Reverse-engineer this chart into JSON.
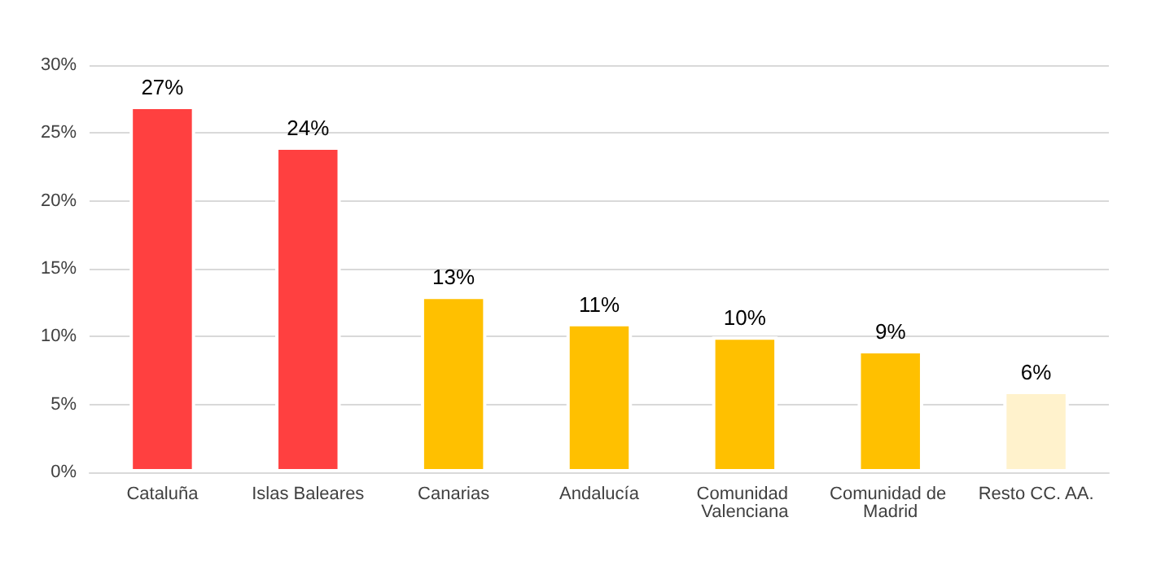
{
  "chart_data": {
    "type": "bar",
    "categories": [
      "Cataluña",
      "Islas Baleares",
      "Canarias",
      "Andalucía",
      "Comunidad Valenciana",
      "Comunidad de Madrid",
      "Resto CC. AA."
    ],
    "values": [
      27,
      24,
      13,
      11,
      10,
      9,
      6
    ],
    "colors": [
      "#ff4040",
      "#ff4040",
      "#ffc000",
      "#ffc000",
      "#ffc000",
      "#ffc000",
      "#fff2cc"
    ],
    "value_labels": [
      "27%",
      "24%",
      "13%",
      "11%",
      "10%",
      "9%",
      "6%"
    ],
    "ylim": [
      0,
      30
    ],
    "yticks": [
      {
        "value": 0,
        "label": "0%"
      },
      {
        "value": 5,
        "label": "5%"
      },
      {
        "value": 10,
        "label": "10%"
      },
      {
        "value": 15,
        "label": "15%"
      },
      {
        "value": 20,
        "label": "20%"
      },
      {
        "value": 25,
        "label": "25%"
      },
      {
        "value": 30,
        "label": "30%"
      }
    ],
    "grid": "y"
  }
}
